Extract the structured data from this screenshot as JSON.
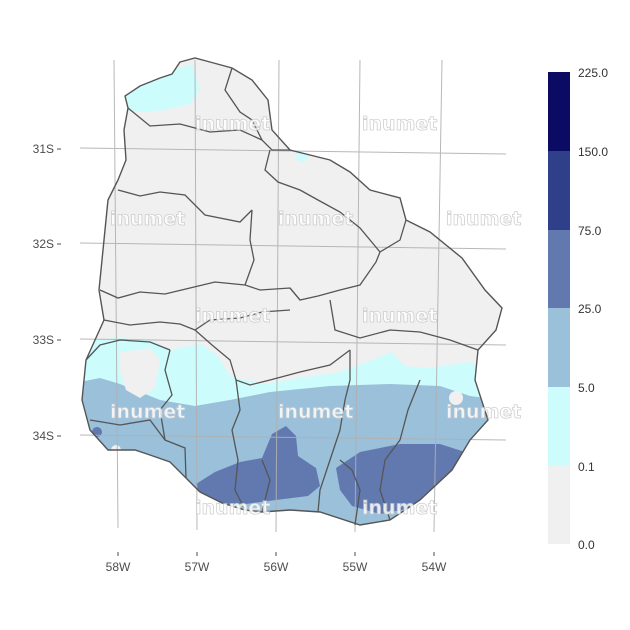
{
  "map": {
    "lat_ticks": [
      "31S",
      "32S",
      "33S",
      "34S"
    ],
    "lon_ticks": [
      "58W",
      "57W",
      "56W",
      "55W",
      "54W"
    ],
    "watermark": "inumet",
    "watermark_count": 12
  },
  "legend": {
    "breaks": [
      "225.0",
      "150.0",
      "75.0",
      "25.0",
      "5.0",
      "0.1",
      "0.0"
    ],
    "classes": [
      {
        "range": "150.0-225.0",
        "color": "#0b0b63"
      },
      {
        "range": "75.0-150.0",
        "color": "#2f3f8a"
      },
      {
        "range": "25.0-75.0",
        "color": "#6279b0"
      },
      {
        "range": "5.0-25.0",
        "color": "#9ac0da"
      },
      {
        "range": "0.1-5.0",
        "color": "#ccfcfc"
      },
      {
        "range": "0.0-0.1",
        "color": "#f0f0f0"
      }
    ]
  },
  "colors": {
    "land": "#f0f0f0",
    "cyan": "#ccfcfc",
    "light_blue": "#9ac0da",
    "mid_blue": "#6279b0",
    "border": "#555555",
    "grid": "#b0b0b0"
  }
}
